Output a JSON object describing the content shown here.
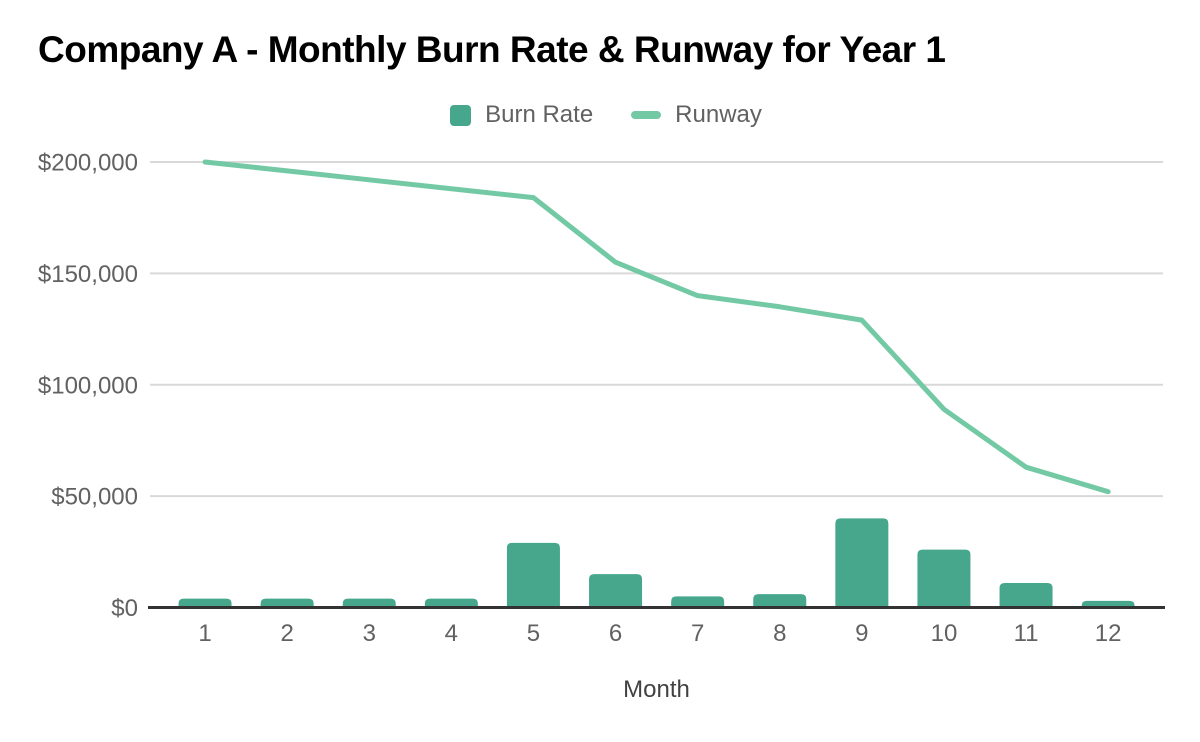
{
  "chart_data": {
    "type": "combo",
    "title": "Company A - Monthly Burn Rate & Runway for Year 1",
    "categories": [
      "1",
      "2",
      "3",
      "4",
      "5",
      "6",
      "7",
      "8",
      "9",
      "10",
      "11",
      "12"
    ],
    "series": [
      {
        "name": "Burn Rate",
        "type": "bar",
        "color": "#46a78d",
        "values": [
          4000,
          4000,
          4000,
          4000,
          29000,
          15000,
          5000,
          6000,
          40000,
          26000,
          11000,
          3000
        ]
      },
      {
        "name": "Runway",
        "type": "line",
        "color": "#74c9a5",
        "values": [
          200000,
          196000,
          192000,
          188000,
          184000,
          155000,
          140000,
          135000,
          129000,
          89000,
          63000,
          52000
        ]
      }
    ],
    "xlabel": "Month",
    "ylabel": "",
    "ylim": [
      0,
      200000
    ],
    "yticks": [
      {
        "value": 0,
        "label": "$0"
      },
      {
        "value": 50000,
        "label": "$50,000"
      },
      {
        "value": 100000,
        "label": "$100,000"
      },
      {
        "value": 150000,
        "label": "$150,000"
      },
      {
        "value": 200000,
        "label": "$200,000"
      }
    ],
    "grid": true,
    "legend_position": "top"
  },
  "colors": {
    "bar_series": "#46a78d",
    "line_series": "#74c9a5",
    "gridline": "#d9d9d9",
    "axis_line": "#333333",
    "tick_text": "#616161",
    "axis_label_text": "#424242",
    "title_text": "#000000",
    "background": "#ffffff"
  }
}
